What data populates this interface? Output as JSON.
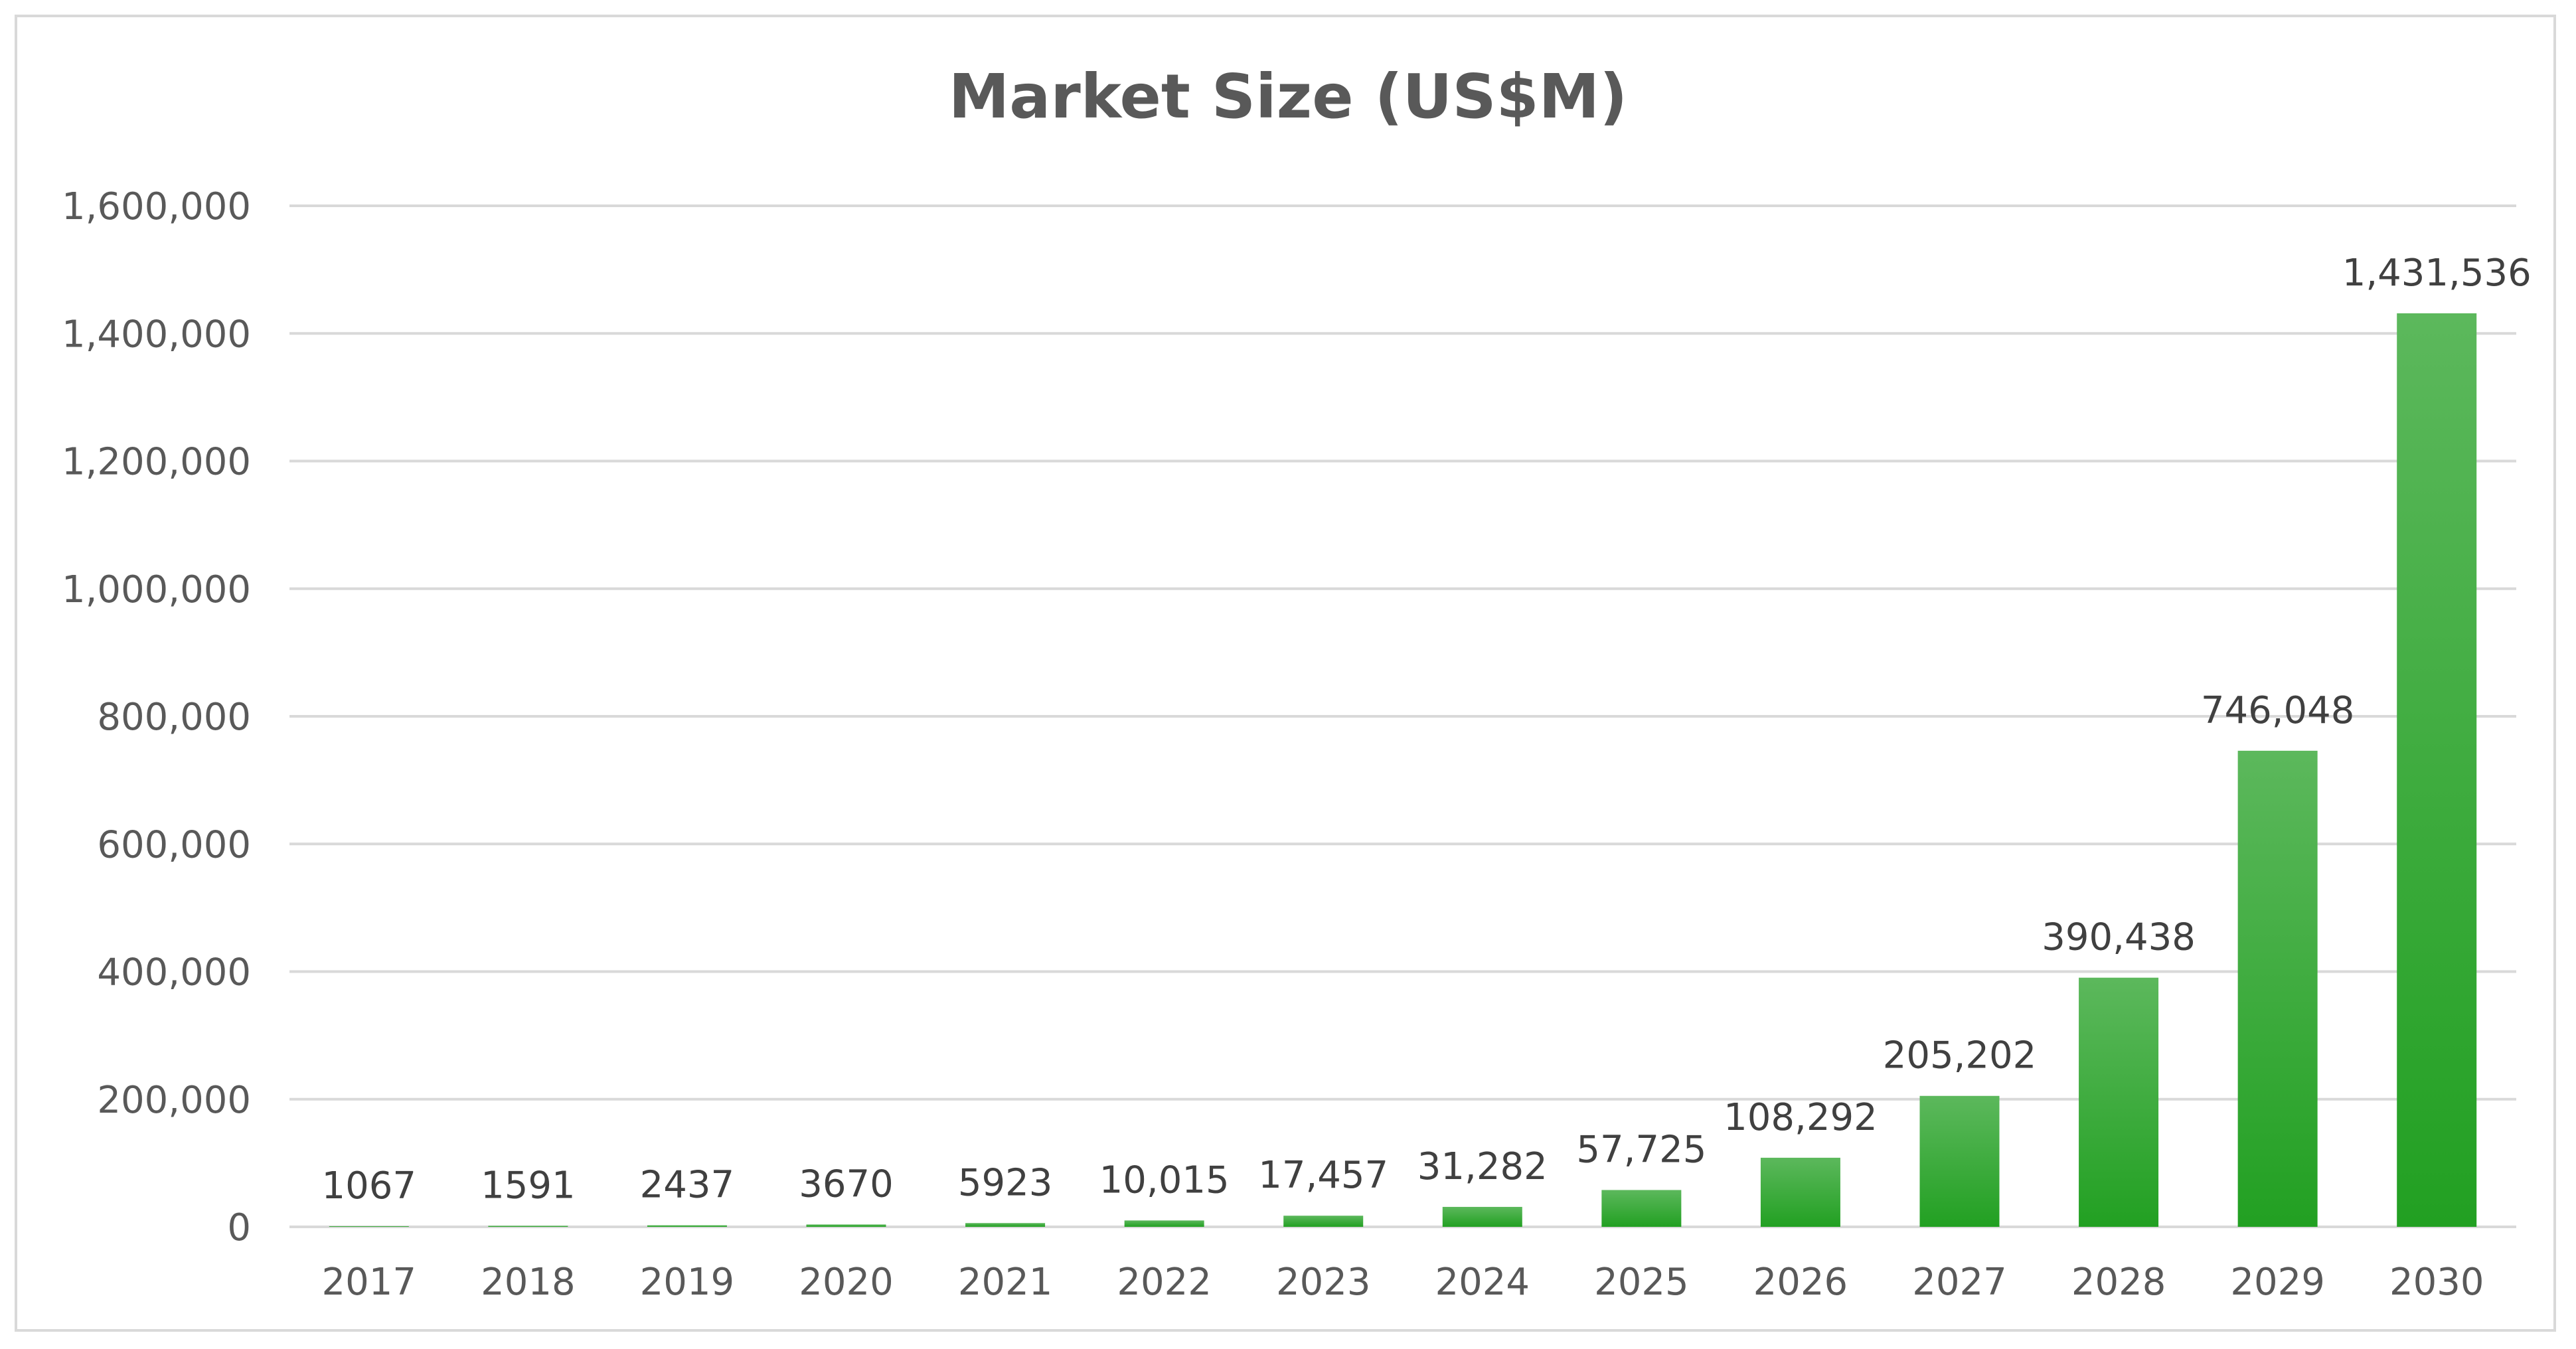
{
  "chart_data": {
    "type": "bar",
    "title": "Market Size (US$M)",
    "xlabel": "",
    "ylabel": "",
    "categories": [
      "2017",
      "2018",
      "2019",
      "2020",
      "2021",
      "2022",
      "2023",
      "2024",
      "2025",
      "2026",
      "2027",
      "2028",
      "2029",
      "2030"
    ],
    "values": [
      1067,
      1591,
      2437,
      3670,
      5923,
      10015,
      17457,
      31282,
      57725,
      108292,
      205202,
      390438,
      746048,
      1431536
    ],
    "data_labels": [
      "1067",
      "1591",
      "2437",
      "3670",
      "5923",
      "10,015",
      "17,457",
      "31,282",
      "57,725",
      "108,292",
      "205,202",
      "390,438",
      "746,048",
      "1,431,536"
    ],
    "ylim": [
      0,
      1600000
    ],
    "yticks": [
      0,
      200000,
      400000,
      600000,
      800000,
      1000000,
      1200000,
      1400000,
      1600000
    ],
    "ytick_labels": [
      "0",
      "200,000",
      "400,000",
      "600,000",
      "800,000",
      "1,000,000",
      "1,200,000",
      "1,400,000",
      "1,600,000"
    ],
    "grid": true,
    "legend": "none",
    "colors": {
      "bar_top": "#5cb85c",
      "bar_bottom": "#22a022",
      "grid": "#d9d9d9",
      "text": "#595959"
    }
  }
}
